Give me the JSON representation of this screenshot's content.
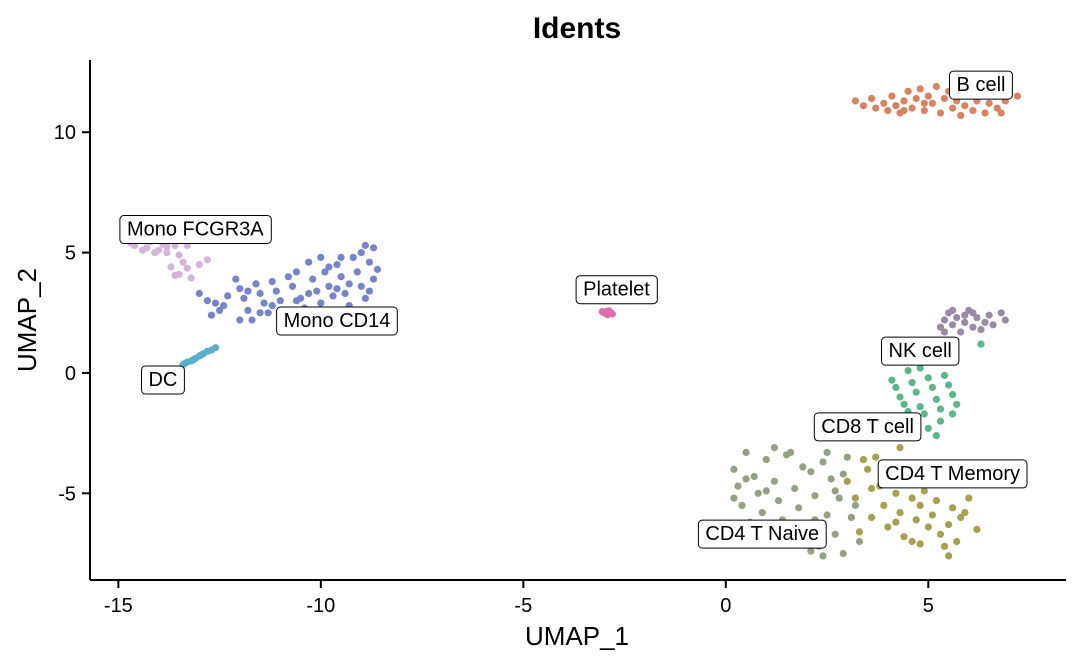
{
  "chart_data": {
    "type": "scatter",
    "title": "Idents",
    "xlabel": "UMAP_1",
    "ylabel": "UMAP_2",
    "xlim": [
      -15.7,
      8.4
    ],
    "ylim": [
      -8.6,
      13.0
    ],
    "xticks": [
      -15,
      -10,
      -5,
      0,
      5
    ],
    "xtick_labels": [
      "-15",
      "-10",
      "-5",
      "0",
      "5"
    ],
    "yticks": [
      -5,
      0,
      5,
      10
    ],
    "ytick_labels": [
      "-5",
      "0",
      "5",
      "10"
    ],
    "grid": false,
    "legend": "none",
    "series": [
      {
        "name": "Mono FCGR3A",
        "color": "#d5b4db",
        "label_pos": [
          -13.1,
          6.0
        ],
        "points": [
          [
            -14.8,
            5.5
          ],
          [
            -14.6,
            5.3
          ],
          [
            -14.5,
            5.6
          ],
          [
            -14.3,
            5.2
          ],
          [
            -14.2,
            5.45
          ],
          [
            -14.0,
            5.1
          ],
          [
            -13.9,
            5.35
          ],
          [
            -13.8,
            5.0
          ],
          [
            -13.6,
            5.3
          ],
          [
            -13.5,
            4.9
          ],
          [
            -13.4,
            4.6
          ],
          [
            -13.7,
            4.4
          ],
          [
            -13.3,
            4.35
          ],
          [
            -13.6,
            4.05
          ],
          [
            -13.2,
            3.95
          ],
          [
            -13.0,
            4.5
          ],
          [
            -12.8,
            4.7
          ],
          [
            -14.4,
            5.1
          ],
          [
            -14.1,
            5.0
          ],
          [
            -13.8,
            5.25
          ],
          [
            -13.3,
            5.3
          ],
          [
            -14.7,
            5.4
          ],
          [
            -14.0,
            5.55
          ],
          [
            -13.5,
            4.1
          ]
        ]
      },
      {
        "name": "Mono CD14",
        "color": "#7685cb",
        "label_pos": [
          -9.6,
          2.2
        ],
        "points": [
          [
            -13.0,
            3.3
          ],
          [
            -12.8,
            3.0
          ],
          [
            -12.6,
            2.9
          ],
          [
            -12.5,
            2.6
          ],
          [
            -12.7,
            2.4
          ],
          [
            -12.1,
            3.9
          ],
          [
            -12.0,
            3.5
          ],
          [
            -11.9,
            3.1
          ],
          [
            -11.8,
            2.6
          ],
          [
            -11.7,
            2.2
          ],
          [
            -11.6,
            3.7
          ],
          [
            -11.5,
            3.3
          ],
          [
            -11.4,
            2.9
          ],
          [
            -11.3,
            2.5
          ],
          [
            -11.2,
            3.8
          ],
          [
            -11.1,
            3.4
          ],
          [
            -11.0,
            3.0
          ],
          [
            -10.9,
            2.6
          ],
          [
            -10.8,
            2.1
          ],
          [
            -10.7,
            3.6
          ],
          [
            -10.6,
            4.2
          ],
          [
            -10.5,
            3.1
          ],
          [
            -10.4,
            2.7
          ],
          [
            -10.3,
            4.6
          ],
          [
            -10.2,
            3.9
          ],
          [
            -10.1,
            3.4
          ],
          [
            -10.0,
            4.8
          ],
          [
            -9.9,
            4.2
          ],
          [
            -9.8,
            3.6
          ],
          [
            -9.7,
            3.2
          ],
          [
            -9.6,
            4.5
          ],
          [
            -9.5,
            4.0
          ],
          [
            -9.4,
            3.3
          ],
          [
            -9.3,
            2.8
          ],
          [
            -9.2,
            4.8
          ],
          [
            -9.1,
            4.2
          ],
          [
            -9.0,
            3.6
          ],
          [
            -8.9,
            5.3
          ],
          [
            -8.8,
            4.6
          ],
          [
            -8.7,
            3.9
          ],
          [
            -8.6,
            4.3
          ],
          [
            -8.9,
            3.1
          ],
          [
            -9.3,
            3.7
          ],
          [
            -10.0,
            2.9
          ],
          [
            -10.6,
            3.0
          ],
          [
            -11.0,
            2.2
          ],
          [
            -11.5,
            2.5
          ],
          [
            -12.0,
            2.2
          ],
          [
            -12.3,
            3.2
          ],
          [
            -9.5,
            4.8
          ],
          [
            -8.8,
            3.4
          ],
          [
            -10.3,
            3.3
          ],
          [
            -11.8,
            3.4
          ],
          [
            -12.4,
            2.8
          ],
          [
            -9.8,
            4.4
          ],
          [
            -9.0,
            5.0
          ],
          [
            -8.7,
            5.2
          ],
          [
            -10.8,
            4.0
          ],
          [
            -11.2,
            2.8
          ],
          [
            -9.6,
            3.5
          ]
        ]
      },
      {
        "name": "DC",
        "color": "#5ab0c8",
        "label_pos": [
          -13.9,
          -0.25
        ],
        "points": [
          [
            -13.4,
            0.35
          ],
          [
            -13.3,
            0.45
          ],
          [
            -13.2,
            0.5
          ],
          [
            -13.1,
            0.6
          ],
          [
            -13.0,
            0.7
          ],
          [
            -12.9,
            0.8
          ],
          [
            -12.8,
            0.9
          ],
          [
            -12.7,
            0.95
          ],
          [
            -12.6,
            1.05
          ],
          [
            -13.35,
            0.4
          ],
          [
            -13.15,
            0.55
          ],
          [
            -12.95,
            0.75
          ]
        ]
      },
      {
        "name": "Platelet",
        "color": "#dd6ea8",
        "label_pos": [
          -2.7,
          3.5
        ],
        "points": [
          [
            -3.0,
            2.5
          ],
          [
            -2.95,
            2.55
          ],
          [
            -2.9,
            2.48
          ],
          [
            -2.85,
            2.52
          ],
          [
            -2.8,
            2.45
          ],
          [
            -3.05,
            2.55
          ],
          [
            -2.92,
            2.42
          ],
          [
            -2.88,
            2.58
          ]
        ]
      },
      {
        "name": "B cell",
        "color": "#d78361",
        "label_pos": [
          6.3,
          12.0
        ],
        "points": [
          [
            3.2,
            11.3
          ],
          [
            3.4,
            11.1
          ],
          [
            3.6,
            11.4
          ],
          [
            3.7,
            11.0
          ],
          [
            3.9,
            11.2
          ],
          [
            4.0,
            10.9
          ],
          [
            4.1,
            11.5
          ],
          [
            4.2,
            11.1
          ],
          [
            4.3,
            10.8
          ],
          [
            4.4,
            11.3
          ],
          [
            4.5,
            11.7
          ],
          [
            4.6,
            11.0
          ],
          [
            4.7,
            11.4
          ],
          [
            4.8,
            11.8
          ],
          [
            4.9,
            10.9
          ],
          [
            5.0,
            11.5
          ],
          [
            5.1,
            11.2
          ],
          [
            5.2,
            11.9
          ],
          [
            5.3,
            10.8
          ],
          [
            5.4,
            11.4
          ],
          [
            5.5,
            11.7
          ],
          [
            5.6,
            11.0
          ],
          [
            5.7,
            11.3
          ],
          [
            5.8,
            10.7
          ],
          [
            5.9,
            11.1
          ],
          [
            6.0,
            11.6
          ],
          [
            6.1,
            10.9
          ],
          [
            6.2,
            11.3
          ],
          [
            6.3,
            11.6
          ],
          [
            6.4,
            10.8
          ],
          [
            6.5,
            11.2
          ],
          [
            6.6,
            11.5
          ],
          [
            6.7,
            11.0
          ],
          [
            6.8,
            10.8
          ],
          [
            6.9,
            11.3
          ],
          [
            7.0,
            11.6
          ],
          [
            7.2,
            11.5
          ],
          [
            4.9,
            11.2
          ],
          [
            5.6,
            11.6
          ],
          [
            4.4,
            10.9
          ]
        ]
      },
      {
        "name": "NK cell",
        "color": "#9b8aa6",
        "label_pos": [
          4.8,
          0.95
        ],
        "points": [
          [
            5.3,
            1.9
          ],
          [
            5.4,
            2.2
          ],
          [
            5.5,
            2.5
          ],
          [
            5.6,
            2.0
          ],
          [
            5.7,
            2.3
          ],
          [
            5.8,
            1.7
          ],
          [
            5.9,
            2.1
          ],
          [
            6.0,
            2.6
          ],
          [
            6.1,
            1.9
          ],
          [
            6.2,
            2.3
          ],
          [
            6.3,
            1.8
          ],
          [
            6.5,
            2.4
          ],
          [
            6.6,
            2.0
          ],
          [
            6.8,
            2.5
          ],
          [
            6.9,
            2.2
          ],
          [
            5.4,
            1.7
          ],
          [
            5.9,
            2.4
          ],
          [
            6.4,
            2.1
          ],
          [
            5.6,
            2.6
          ],
          [
            6.1,
            2.5
          ]
        ]
      },
      {
        "name": "CD8 T cell",
        "color": "#5bb68a",
        "label_pos": [
          3.5,
          -2.2
        ],
        "points": [
          [
            4.1,
            -0.3
          ],
          [
            4.2,
            -0.6
          ],
          [
            4.3,
            -1.0
          ],
          [
            4.4,
            -1.3
          ],
          [
            4.5,
            0.1
          ],
          [
            4.6,
            -0.4
          ],
          [
            4.7,
            -0.8
          ],
          [
            4.8,
            -1.4
          ],
          [
            4.9,
            -1.7
          ],
          [
            5.0,
            -0.2
          ],
          [
            5.1,
            -0.6
          ],
          [
            5.2,
            -1.1
          ],
          [
            5.3,
            -1.5
          ],
          [
            5.4,
            -0.1
          ],
          [
            5.5,
            -0.5
          ],
          [
            5.6,
            -0.9
          ],
          [
            5.7,
            -1.3
          ],
          [
            5.0,
            -2.3
          ],
          [
            5.2,
            -2.6
          ],
          [
            4.5,
            -1.6
          ],
          [
            4.4,
            -2.2
          ],
          [
            4.8,
            0.2
          ],
          [
            5.6,
            -1.7
          ],
          [
            6.3,
            1.2
          ],
          [
            5.3,
            -2.0
          ]
        ]
      },
      {
        "name": "CD4 T Memory",
        "color": "#a8a04e",
        "label_pos": [
          5.6,
          -4.15
        ],
        "points": [
          [
            3.0,
            -4.5
          ],
          [
            3.2,
            -5.2
          ],
          [
            3.4,
            -3.6
          ],
          [
            3.5,
            -4.0
          ],
          [
            3.6,
            -6.0
          ],
          [
            3.7,
            -3.5
          ],
          [
            3.8,
            -4.7
          ],
          [
            3.9,
            -5.5
          ],
          [
            4.0,
            -6.4
          ],
          [
            4.1,
            -4.2
          ],
          [
            4.2,
            -5.0
          ],
          [
            4.3,
            -5.8
          ],
          [
            4.4,
            -6.8
          ],
          [
            4.5,
            -4.4
          ],
          [
            4.6,
            -5.2
          ],
          [
            4.7,
            -6.1
          ],
          [
            4.8,
            -5.5
          ],
          [
            4.9,
            -4.9
          ],
          [
            5.0,
            -6.4
          ],
          [
            5.1,
            -5.9
          ],
          [
            5.2,
            -5.3
          ],
          [
            5.3,
            -6.7
          ],
          [
            5.4,
            -7.2
          ],
          [
            5.5,
            -6.3
          ],
          [
            5.6,
            -5.6
          ],
          [
            5.7,
            -7.0
          ],
          [
            5.8,
            -6.0
          ],
          [
            6.0,
            -5.2
          ],
          [
            6.2,
            -6.5
          ],
          [
            4.3,
            -3.1
          ],
          [
            3.6,
            -4.8
          ],
          [
            4.6,
            -7.0
          ],
          [
            5.5,
            -7.6
          ],
          [
            5.0,
            -4.5
          ],
          [
            4.2,
            -6.2
          ],
          [
            3.3,
            -6.6
          ],
          [
            5.9,
            -5.8
          ],
          [
            4.8,
            -7.1
          ]
        ]
      },
      {
        "name": "CD4 T Naive",
        "color": "#93a382",
        "label_pos": [
          0.9,
          -6.65
        ],
        "points": [
          [
            0.2,
            -4.0
          ],
          [
            0.3,
            -4.7
          ],
          [
            0.4,
            -5.5
          ],
          [
            0.5,
            -3.3
          ],
          [
            0.6,
            -6.2
          ],
          [
            0.7,
            -4.3
          ],
          [
            0.8,
            -5.0
          ],
          [
            0.9,
            -5.8
          ],
          [
            1.0,
            -3.6
          ],
          [
            1.1,
            -6.6
          ],
          [
            1.2,
            -4.5
          ],
          [
            1.3,
            -5.3
          ],
          [
            1.4,
            -6.1
          ],
          [
            1.5,
            -3.4
          ],
          [
            1.6,
            -7.0
          ],
          [
            1.7,
            -4.8
          ],
          [
            1.8,
            -5.6
          ],
          [
            1.9,
            -3.9
          ],
          [
            2.0,
            -6.4
          ],
          [
            2.1,
            -4.1
          ],
          [
            2.2,
            -5.1
          ],
          [
            2.3,
            -7.2
          ],
          [
            2.4,
            -3.7
          ],
          [
            2.5,
            -5.9
          ],
          [
            2.6,
            -4.4
          ],
          [
            2.7,
            -6.7
          ],
          [
            2.8,
            -5.2
          ],
          [
            2.9,
            -7.5
          ],
          [
            3.0,
            -3.5
          ],
          [
            3.1,
            -6.0
          ],
          [
            2.4,
            -7.6
          ],
          [
            1.2,
            -3.1
          ],
          [
            0.2,
            -5.2
          ],
          [
            2.7,
            -4.9
          ],
          [
            3.3,
            -7.0
          ],
          [
            2.1,
            -7.4
          ],
          [
            1.6,
            -3.3
          ],
          [
            0.9,
            -6.9
          ],
          [
            2.9,
            -4.2
          ],
          [
            1.8,
            -6.8
          ],
          [
            2.5,
            -3.3
          ],
          [
            3.2,
            -5.5
          ],
          [
            1.0,
            -4.9
          ],
          [
            2.2,
            -6.1
          ],
          [
            0.5,
            -4.4
          ]
        ]
      }
    ]
  }
}
